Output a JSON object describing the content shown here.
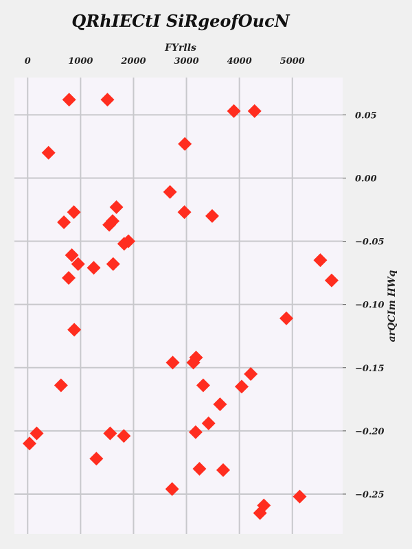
{
  "chart_data": {
    "type": "scatter",
    "title": "QRhIECtI SiRgeofOucN",
    "xlabel": "FYrlls",
    "ylabel": "arQCIm HWq",
    "xlim": [
      -250,
      5950
    ],
    "ylim": [
      -0.2815,
      0.0795
    ],
    "x_ticks": [
      0,
      1000,
      2000,
      3000,
      4000,
      5000
    ],
    "x_tick_labels": [
      "0",
      "1000",
      "2000",
      "3000",
      "4000",
      "5000"
    ],
    "y_ticks": [
      0.05,
      0.0,
      -0.05,
      -0.1,
      -0.15,
      -0.2,
      -0.25
    ],
    "y_tick_labels": [
      "0.05",
      "0.00",
      "−0.05",
      "−0.10",
      "−0.15",
      "−0.20",
      "−0.25"
    ],
    "x_axis_position": "top",
    "y_axis_position": "right",
    "grid": true,
    "marker": "diamond",
    "colors": {
      "marker": "#ff2d1f",
      "plot_background": "#f7f4fa",
      "figure_background": "#f0f0f0",
      "grid": "#c8c8cc"
    },
    "series": [
      {
        "x": [
          783,
          1507,
          3895,
          4286,
          394,
          2969,
          2689,
          2961,
          3485,
          873,
          1677,
          685,
          1605,
          1541,
          1904,
          1823,
          834,
          953,
          1248,
          1615,
          775,
          5528,
          5742,
          4887,
          880,
          2740,
          3181,
          3130,
          3316,
          4214,
          630,
          4043,
          3634,
          3417,
          171,
          1558,
          1817,
          3173,
          35,
          1298,
          3245,
          3693,
          2729,
          4462,
          4389,
          5139
        ],
        "y": [
          0.062,
          0.062,
          0.053,
          0.053,
          0.02,
          0.027,
          -0.011,
          -0.027,
          -0.03,
          -0.027,
          -0.023,
          -0.035,
          -0.034,
          -0.037,
          -0.05,
          -0.052,
          -0.061,
          -0.068,
          -0.071,
          -0.068,
          -0.079,
          -0.065,
          -0.081,
          -0.111,
          -0.12,
          -0.146,
          -0.142,
          -0.146,
          -0.164,
          -0.155,
          -0.164,
          -0.165,
          -0.179,
          -0.194,
          -0.202,
          -0.202,
          -0.204,
          -0.201,
          -0.21,
          -0.222,
          -0.23,
          -0.231,
          -0.246,
          -0.259,
          -0.265,
          -0.252
        ]
      }
    ]
  }
}
